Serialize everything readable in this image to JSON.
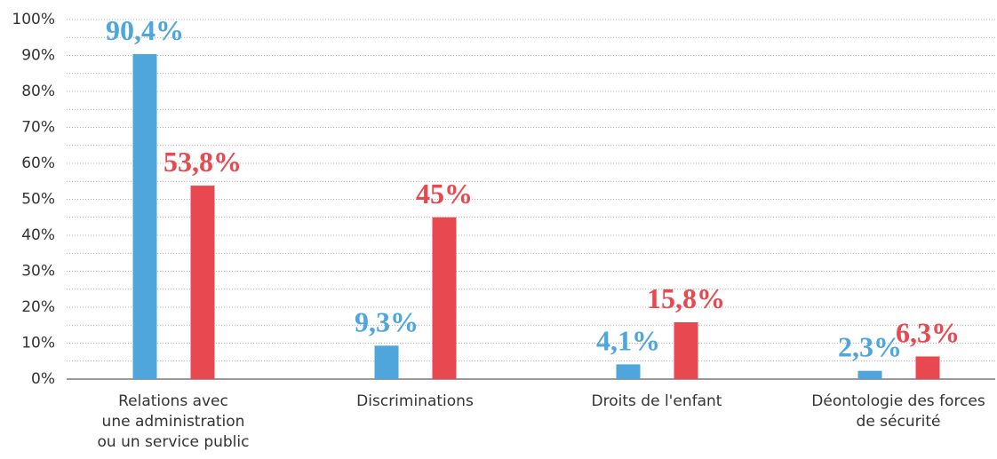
{
  "chart_data": {
    "type": "bar",
    "categories": [
      [
        "Relations avec",
        "une administration",
        "ou un service public"
      ],
      [
        "Discriminations"
      ],
      [
        "Droits de l'enfant"
      ],
      [
        "Déontologie des forces",
        "de sécurité"
      ]
    ],
    "series": [
      {
        "color": "#4ea6dc",
        "values": [
          90.4,
          9.3,
          4.1,
          2.3
        ],
        "value_labels": [
          "90,4%",
          "9,3%",
          "4,1%",
          "2,3%"
        ]
      },
      {
        "color": "#e8484f",
        "values": [
          53.8,
          45,
          15.8,
          6.3
        ],
        "value_labels": [
          "53,8%",
          "45%",
          "15,8%",
          "6,3%"
        ]
      }
    ],
    "ylim": [
      0,
      100
    ],
    "yticks": [
      {
        "value": 0,
        "label": "0%"
      },
      {
        "value": 10,
        "label": "10%"
      },
      {
        "value": 20,
        "label": "20%"
      },
      {
        "value": 30,
        "label": "30%"
      },
      {
        "value": 40,
        "label": "40%"
      },
      {
        "value": 50,
        "label": "50%"
      },
      {
        "value": 60,
        "label": "60%"
      },
      {
        "value": 70,
        "label": "70%"
      },
      {
        "value": 80,
        "label": "80%"
      },
      {
        "value": 90,
        "label": "90%"
      },
      {
        "value": 100,
        "label": "100%"
      }
    ],
    "minor_yticks": [
      5,
      15,
      25,
      35,
      45,
      55,
      65,
      75,
      85,
      95
    ],
    "grid": true
  }
}
